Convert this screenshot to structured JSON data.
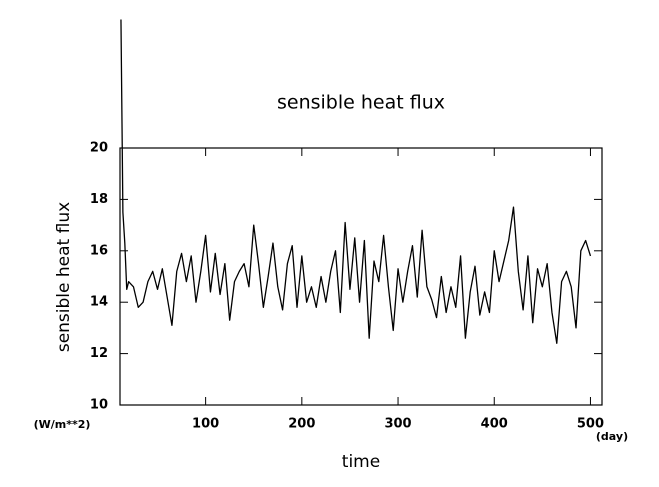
{
  "chart_data": {
    "type": "line",
    "title": "sensible heat flux",
    "x_label": "time",
    "y_label": "sensible heat flux",
    "y_unit": "(W/m**2)",
    "x_unit": "(day)",
    "color": "#000000",
    "x": [
      12,
      14,
      16,
      18,
      20,
      25,
      30,
      35,
      40,
      45,
      50,
      55,
      60,
      65,
      70,
      75,
      80,
      85,
      90,
      95,
      100,
      105,
      110,
      115,
      120,
      125,
      130,
      135,
      140,
      145,
      150,
      155,
      160,
      165,
      170,
      175,
      180,
      185,
      190,
      195,
      200,
      205,
      210,
      215,
      220,
      225,
      230,
      235,
      240,
      245,
      250,
      255,
      260,
      265,
      270,
      275,
      280,
      285,
      290,
      295,
      300,
      305,
      310,
      315,
      320,
      325,
      330,
      335,
      340,
      345,
      350,
      355,
      360,
      365,
      370,
      375,
      380,
      385,
      390,
      395,
      400,
      405,
      410,
      415,
      420,
      425,
      430,
      435,
      440,
      445,
      450,
      455,
      460,
      465,
      470,
      475,
      480,
      485,
      490,
      495,
      500
    ],
    "values": [
      25,
      17.5,
      16.3,
      14.5,
      14.8,
      14.6,
      13.8,
      14.0,
      14.8,
      15.2,
      14.5,
      15.3,
      14.2,
      13.1,
      15.2,
      15.9,
      14.8,
      15.8,
      14.0,
      15.2,
      16.6,
      14.4,
      15.9,
      14.3,
      15.5,
      13.3,
      14.8,
      15.2,
      15.5,
      14.6,
      17.0,
      15.5,
      13.8,
      15.0,
      16.3,
      14.6,
      13.7,
      15.5,
      16.2,
      13.8,
      15.8,
      14.0,
      14.6,
      13.8,
      15.0,
      14.0,
      15.2,
      16.0,
      13.6,
      17.1,
      14.5,
      16.5,
      14.0,
      16.4,
      12.6,
      15.6,
      14.8,
      16.6,
      14.6,
      12.9,
      15.3,
      14.0,
      15.2,
      16.2,
      14.2,
      16.8,
      14.6,
      14.1,
      13.4,
      15.0,
      13.6,
      14.6,
      13.8,
      15.8,
      12.6,
      14.4,
      15.4,
      13.5,
      14.4,
      13.6,
      16.0,
      14.8,
      15.6,
      16.4,
      17.7,
      15.2,
      13.7,
      15.8,
      13.2,
      15.3,
      14.6,
      15.5,
      13.6,
      12.4,
      14.8,
      15.2,
      14.6,
      13.0,
      16.0,
      16.4,
      15.8
    ],
    "xlim": [
      11,
      512
    ],
    "ylim": [
      10,
      20
    ],
    "xticks": [
      100,
      200,
      300,
      400,
      500
    ],
    "yticks": [
      10,
      12,
      14,
      16,
      18,
      20
    ]
  }
}
